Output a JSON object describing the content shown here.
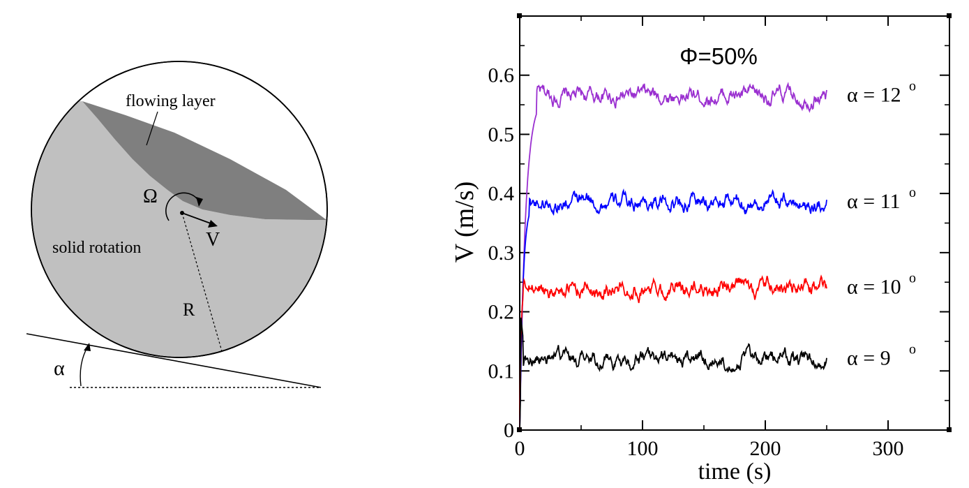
{
  "diagram": {
    "flowing_layer_label": "flowing layer",
    "omega_label": "Ω",
    "velocity_label": "V",
    "solid_rotation_label": "solid rotation",
    "radius_label": "R",
    "alpha_label": "α",
    "colors": {
      "drum_fill": "#c0c0c0",
      "flowing_layer_fill": "#7f7f7f",
      "outline": "#000000"
    }
  },
  "chart_data": {
    "type": "line",
    "title": "Φ=50%",
    "xlabel": "time (s)",
    "ylabel": "V (m/s)",
    "xlim": [
      0,
      350
    ],
    "ylim": [
      0,
      0.7
    ],
    "xticks": [
      0,
      100,
      200,
      300
    ],
    "yticks": [
      0,
      0.1,
      0.2,
      0.3,
      0.4,
      0.5,
      0.6
    ],
    "grid": false,
    "series": [
      {
        "name": "α = 12",
        "superscript": "o",
        "color": "#9a2fd0",
        "plateau": 0.565,
        "noise": 0.015,
        "x_end": 250,
        "rise_time": 14
      },
      {
        "name": "α = 11",
        "superscript": "o",
        "color": "#0000ff",
        "plateau": 0.385,
        "noise": 0.015,
        "x_end": 250,
        "rise_time": 8
      },
      {
        "name": "α = 10",
        "superscript": "o",
        "color": "#ff0000",
        "plateau": 0.24,
        "noise": 0.015,
        "x_end": 250,
        "rise_time": 3
      },
      {
        "name": "α = 9",
        "superscript": "o",
        "color": "#000000",
        "plateau": 0.12,
        "noise": 0.015,
        "x_end": 250,
        "rise_time": 3,
        "initial_peak": 0.2
      }
    ]
  }
}
